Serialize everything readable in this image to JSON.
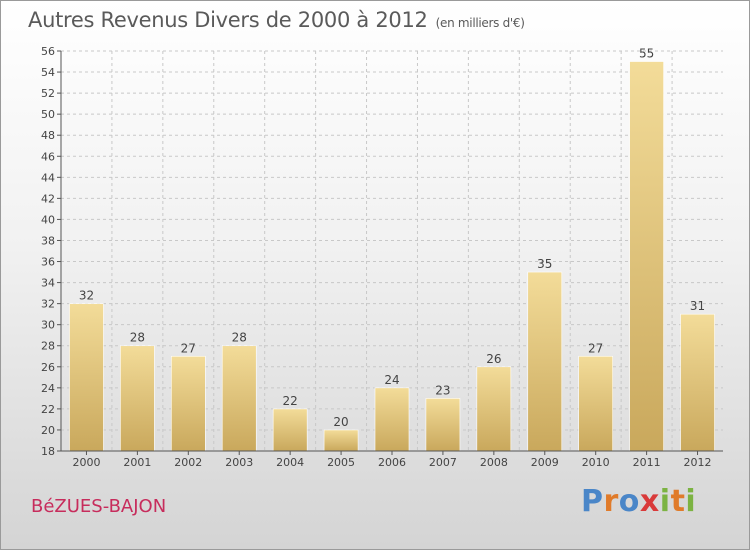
{
  "header": {
    "title": "Autres Revenus Divers de 2000 à 2012",
    "subtitle": "(en milliers d'€)"
  },
  "footer": {
    "commune": "BéZUES-BAJON",
    "logo_text": "Proxiti",
    "logo_letters": [
      "P",
      "r",
      "o",
      "x",
      "i",
      "t",
      "i"
    ],
    "logo_colors": [
      "#4a86c8",
      "#e07b2a",
      "#4a86c8",
      "#d93a3a",
      "#7cb342",
      "#e07b2a",
      "#7cb342"
    ]
  },
  "colors": {
    "bar_light": "#f3dc99",
    "bar_dark": "#c9a85c",
    "grid": "#c8c8c8",
    "axis": "#555555",
    "text": "#444444",
    "commune": "#c72c5c"
  },
  "chart_data": {
    "type": "bar",
    "title": "Autres Revenus Divers de 2000 à 2012",
    "subtitle": "(en milliers d'€)",
    "categories": [
      "2000",
      "2001",
      "2002",
      "2003",
      "2004",
      "2005",
      "2006",
      "2007",
      "2008",
      "2009",
      "2010",
      "2011",
      "2012"
    ],
    "values": [
      32,
      28,
      27,
      28,
      22,
      20,
      24,
      23,
      26,
      35,
      27,
      55,
      31
    ],
    "ylim": [
      18,
      56
    ],
    "yticks": [
      18,
      20,
      22,
      24,
      26,
      28,
      30,
      32,
      34,
      36,
      38,
      40,
      42,
      44,
      46,
      48,
      50,
      52,
      54,
      56
    ],
    "grid": true,
    "data_labels": true
  }
}
